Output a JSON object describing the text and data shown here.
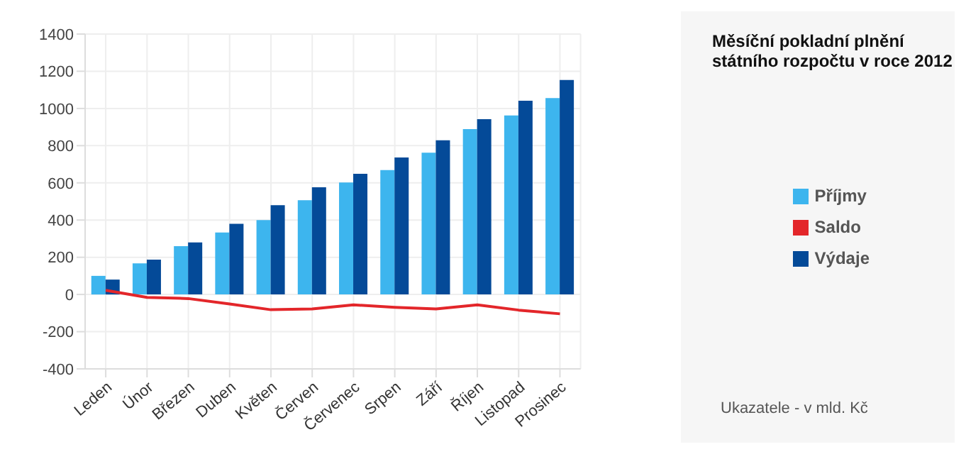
{
  "chart_data": {
    "type": "bar",
    "title": "Měsíční pokladní plnění státního rozpočtu v roce 2012",
    "categories": [
      "Leden",
      "Únor",
      "Březen",
      "Duben",
      "Květen",
      "Červen",
      "Červenec",
      "Srpen",
      "Září",
      "Říjen",
      "Listopad",
      "Prosinec"
    ],
    "series": [
      {
        "name": "Příjmy",
        "color": "#3db5ee",
        "values": [
          100,
          167,
          260,
          333,
          400,
          507,
          602,
          669,
          762,
          889,
          962,
          1056
        ]
      },
      {
        "name": "Výdaje",
        "color": "#044a98",
        "values": [
          80,
          187,
          280,
          380,
          480,
          576,
          649,
          736,
          829,
          942,
          1042,
          1153
        ]
      },
      {
        "name": "Saldo",
        "type": "line",
        "color": "#e3262a",
        "values": [
          22,
          -16,
          -22,
          -51,
          -82,
          -78,
          -56,
          -69,
          -78,
          -56,
          -84,
          -104
        ]
      }
    ],
    "ylim": [
      -400,
      1400
    ],
    "yticks": [
      -400,
      -200,
      0,
      200,
      400,
      600,
      800,
      1000,
      1200,
      1400
    ],
    "grid": true,
    "legend": "right",
    "marker": "none",
    "annotations": [
      "Ukazatele - v mld. Kč"
    ]
  }
}
